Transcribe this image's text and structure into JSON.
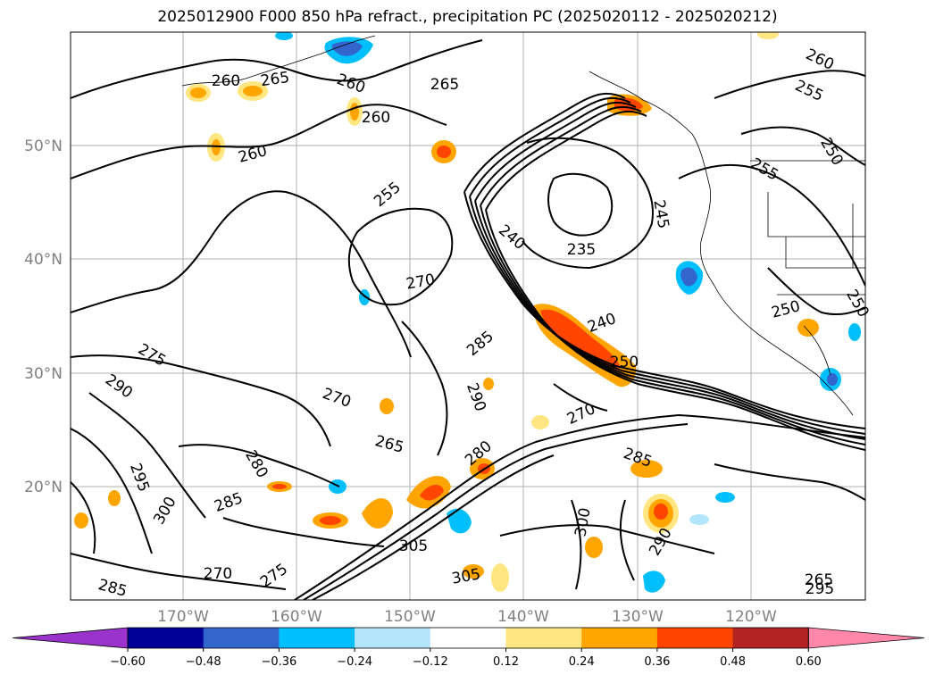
{
  "title": "2025012900 F000 850 hPa refract., precipitation PC (2025020112 - 2025020212)",
  "lat_labels": [
    "50°N",
    "40°N",
    "30°N",
    "20°N"
  ],
  "lon_labels": [
    "170°W",
    "160°W",
    "150°W",
    "140°W",
    "130°W",
    "120°W"
  ],
  "colorbar": {
    "colors": [
      "#9933cc",
      "#000099",
      "#3366cc",
      "#00bfff",
      "#b3e5fc",
      "#ffffff",
      "#ffe680",
      "#ffa500",
      "#ff4500",
      "#b22222",
      "#ff88aa"
    ],
    "tick_labels": [
      "−0.60",
      "−0.48",
      "−0.36",
      "−0.24",
      "−0.12",
      "0.12",
      "0.24",
      "0.36",
      "0.48",
      "0.60"
    ]
  },
  "contour_labels": [
    "265",
    "260",
    "265",
    "260",
    "260",
    "255",
    "270",
    "275",
    "290",
    "270",
    "285",
    "290",
    "280",
    "265",
    "280",
    "295",
    "300",
    "285",
    "270",
    "275",
    "285",
    "305",
    "305",
    "300",
    "290",
    "285",
    "270",
    "250",
    "240",
    "235",
    "240",
    "245",
    "250",
    "255",
    "250",
    "260",
    "255",
    "250",
    "260",
    "265",
    "295"
  ]
}
